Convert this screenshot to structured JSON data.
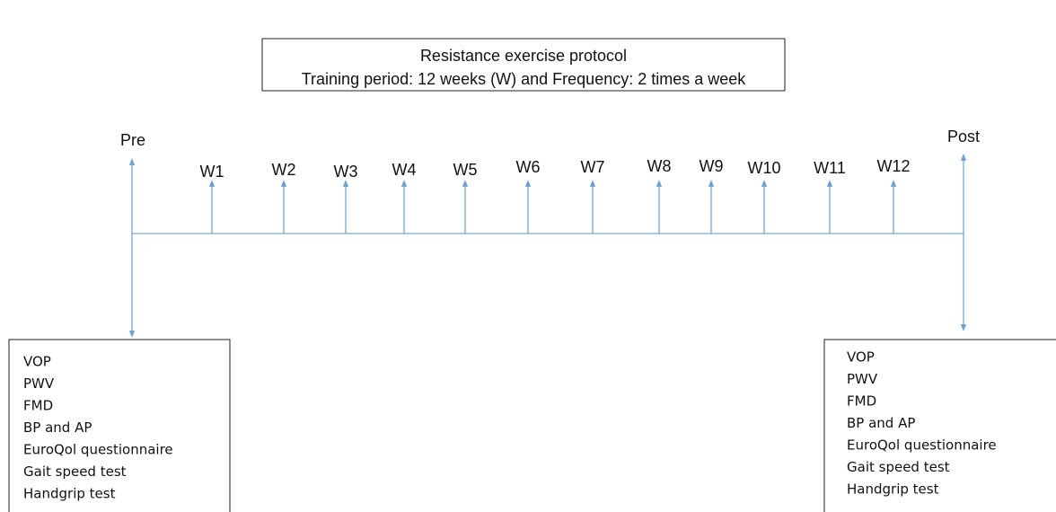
{
  "title_box": {
    "line1": "Resistance exercise protocol",
    "line2": "Training period: 12 weeks (W) and Frequency: 2 times a week"
  },
  "timeline": {
    "start": "Pre",
    "end": "Post",
    "weeks": [
      "W1",
      "W2",
      "W3",
      "W4",
      "W5",
      "W6",
      "W7",
      "W8",
      "W9",
      "W10",
      "W11",
      "W12"
    ]
  },
  "pre_tests": [
    "VOP",
    "PWV",
    "FMD",
    "BP and AP",
    "EuroQol questionnaire",
    "Gait speed test",
    "Handgrip test"
  ],
  "post_tests": [
    "VOP",
    "PWV",
    "FMD",
    "BP and AP",
    "EuroQol questionnaire",
    "Gait speed test",
    "Handgrip test"
  ]
}
